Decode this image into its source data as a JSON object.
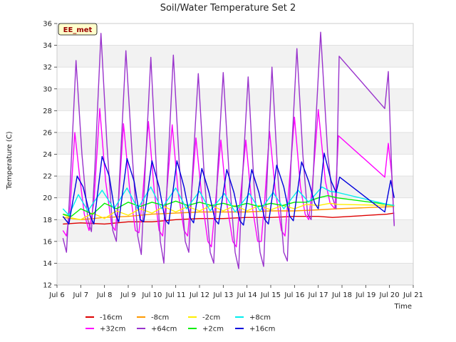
{
  "chart_data": {
    "type": "line",
    "title": "Soil/Water Temperature Set 2",
    "xlabel": "Time",
    "ylabel": "Temperature (C)",
    "annotation": "EE_met",
    "ylim": [
      12,
      36
    ],
    "xlim": [
      6,
      21
    ],
    "yticks": [
      12,
      14,
      16,
      18,
      20,
      22,
      24,
      26,
      28,
      30,
      32,
      34,
      36
    ],
    "xticks": [
      {
        "v": 6,
        "label": "Jul 6"
      },
      {
        "v": 7,
        "label": "Jul 7"
      },
      {
        "v": 8,
        "label": "Jul 8"
      },
      {
        "v": 9,
        "label": "Jul 9"
      },
      {
        "v": 10,
        "label": "Jul 10"
      },
      {
        "v": 11,
        "label": "Jul 11"
      },
      {
        "v": 12,
        "label": "Jul 12"
      },
      {
        "v": 13,
        "label": "Jul 13"
      },
      {
        "v": 14,
        "label": "Jul 14"
      },
      {
        "v": 15,
        "label": "Jul 15"
      },
      {
        "v": 16,
        "label": "Jul 16"
      },
      {
        "v": 17,
        "label": "Jul 17"
      },
      {
        "v": 18,
        "label": "Jul 18"
      },
      {
        "v": 19,
        "label": "Jul 19"
      },
      {
        "v": 20,
        "label": "Jul 20"
      },
      {
        "v": 21,
        "label": "Jul 21"
      }
    ],
    "grid": "horizontal bands",
    "legend_position": "bottom",
    "series": [
      {
        "name": "-16cm",
        "color": "#dd0000",
        "points": [
          [
            6.25,
            17.6
          ],
          [
            7,
            17.7
          ],
          [
            8,
            17.6
          ],
          [
            9,
            17.8
          ],
          [
            10,
            17.8
          ],
          [
            11,
            18.0
          ],
          [
            12,
            18.1
          ],
          [
            13,
            18.1
          ],
          [
            14,
            18.2
          ],
          [
            15,
            18.2
          ],
          [
            16,
            18.3
          ],
          [
            17,
            18.3
          ],
          [
            17.6,
            18.2
          ],
          [
            19.9,
            18.5
          ],
          [
            20.2,
            18.6
          ]
        ]
      },
      {
        "name": "+32cm",
        "color": "#ff00ff",
        "points": [
          [
            6.25,
            17.0
          ],
          [
            6.4,
            16.5
          ],
          [
            6.55,
            19.0
          ],
          [
            6.75,
            26.0
          ],
          [
            6.95,
            22.0
          ],
          [
            7.15,
            18.5
          ],
          [
            7.35,
            17.0
          ],
          [
            7.55,
            19.5
          ],
          [
            7.8,
            28.2
          ],
          [
            8.05,
            21.5
          ],
          [
            8.3,
            17.5
          ],
          [
            8.45,
            17.0
          ],
          [
            8.6,
            20.0
          ],
          [
            8.8,
            26.8
          ],
          [
            9.05,
            21.0
          ],
          [
            9.3,
            17.0
          ],
          [
            9.45,
            16.8
          ],
          [
            9.6,
            20.0
          ],
          [
            9.85,
            27.0
          ],
          [
            10.1,
            20.5
          ],
          [
            10.3,
            17.0
          ],
          [
            10.45,
            16.5
          ],
          [
            10.6,
            20.0
          ],
          [
            10.85,
            26.7
          ],
          [
            11.1,
            20.5
          ],
          [
            11.35,
            17.0
          ],
          [
            11.5,
            16.5
          ],
          [
            11.65,
            20.0
          ],
          [
            11.85,
            25.5
          ],
          [
            12.1,
            20.0
          ],
          [
            12.35,
            16.0
          ],
          [
            12.5,
            15.5
          ],
          [
            12.65,
            19.0
          ],
          [
            12.9,
            25.3
          ],
          [
            13.15,
            19.5
          ],
          [
            13.4,
            16.0
          ],
          [
            13.55,
            15.5
          ],
          [
            13.7,
            19.5
          ],
          [
            13.95,
            25.3
          ],
          [
            14.2,
            19.5
          ],
          [
            14.45,
            16.0
          ],
          [
            14.6,
            16.0
          ],
          [
            14.75,
            20.0
          ],
          [
            14.95,
            26.1
          ],
          [
            15.2,
            20.5
          ],
          [
            15.45,
            17.0
          ],
          [
            15.6,
            16.5
          ],
          [
            15.75,
            20.5
          ],
          [
            16.0,
            27.4
          ],
          [
            16.25,
            21.0
          ],
          [
            16.45,
            18.5
          ],
          [
            16.6,
            18.0
          ],
          [
            16.75,
            21.0
          ],
          [
            17.0,
            28.1
          ],
          [
            17.3,
            21.5
          ],
          [
            17.5,
            19.5
          ],
          [
            17.7,
            19.0
          ],
          [
            17.85,
            25.7
          ],
          [
            19.8,
            21.9
          ],
          [
            19.95,
            25.0
          ],
          [
            20.1,
            22.0
          ],
          [
            20.2,
            17.5
          ]
        ]
      },
      {
        "name": "-8cm",
        "color": "#ff9900",
        "points": [
          [
            6.25,
            18.2
          ],
          [
            7,
            18.0
          ],
          [
            8,
            18.2
          ],
          [
            9,
            18.3
          ],
          [
            10,
            18.5
          ],
          [
            11,
            18.6
          ],
          [
            12,
            18.7
          ],
          [
            13,
            18.7
          ],
          [
            14,
            18.7
          ],
          [
            15,
            18.8
          ],
          [
            16,
            18.8
          ],
          [
            17,
            18.9
          ],
          [
            17.8,
            19.0
          ],
          [
            20.2,
            19.2
          ]
        ]
      },
      {
        "name": "+64cm",
        "color": "#9933cc",
        "points": [
          [
            6.25,
            16.3
          ],
          [
            6.4,
            15.0
          ],
          [
            6.55,
            21.0
          ],
          [
            6.8,
            32.6
          ],
          [
            7.05,
            24.0
          ],
          [
            7.3,
            18.0
          ],
          [
            7.45,
            16.9
          ],
          [
            7.6,
            23.0
          ],
          [
            7.85,
            35.1
          ],
          [
            8.1,
            25.0
          ],
          [
            8.35,
            17.0
          ],
          [
            8.5,
            16.0
          ],
          [
            8.65,
            22.5
          ],
          [
            8.9,
            33.5
          ],
          [
            9.15,
            24.5
          ],
          [
            9.4,
            16.5
          ],
          [
            9.55,
            14.8
          ],
          [
            9.7,
            22.0
          ],
          [
            9.95,
            32.9
          ],
          [
            10.2,
            22.0
          ],
          [
            10.35,
            16.0
          ],
          [
            10.5,
            14.0
          ],
          [
            10.65,
            22.0
          ],
          [
            10.9,
            33.1
          ],
          [
            11.15,
            23.0
          ],
          [
            11.4,
            16.0
          ],
          [
            11.55,
            15.0
          ],
          [
            11.7,
            22.0
          ],
          [
            11.95,
            31.4
          ],
          [
            12.2,
            22.0
          ],
          [
            12.45,
            15.0
          ],
          [
            12.6,
            14.0
          ],
          [
            12.75,
            22.0
          ],
          [
            13.0,
            31.5
          ],
          [
            13.25,
            22.0
          ],
          [
            13.5,
            15.0
          ],
          [
            13.65,
            13.5
          ],
          [
            13.8,
            21.5
          ],
          [
            14.05,
            31.1
          ],
          [
            14.3,
            21.0
          ],
          [
            14.55,
            15.0
          ],
          [
            14.7,
            13.7
          ],
          [
            14.85,
            22.0
          ],
          [
            15.05,
            32.0
          ],
          [
            15.3,
            22.0
          ],
          [
            15.55,
            15.0
          ],
          [
            15.7,
            14.2
          ],
          [
            15.85,
            23.0
          ],
          [
            16.1,
            33.7
          ],
          [
            16.35,
            24.0
          ],
          [
            16.55,
            18.5
          ],
          [
            16.7,
            18.0
          ],
          [
            16.85,
            25.0
          ],
          [
            17.1,
            35.2
          ],
          [
            17.4,
            24.0
          ],
          [
            17.6,
            20.0
          ],
          [
            17.75,
            19.0
          ],
          [
            17.88,
            33.0
          ],
          [
            19.8,
            28.2
          ],
          [
            19.95,
            31.6
          ],
          [
            20.1,
            22.0
          ],
          [
            20.2,
            17.4
          ]
        ]
      },
      {
        "name": "-2cm",
        "color": "#ffee00",
        "points": [
          [
            6.25,
            18.5
          ],
          [
            6.5,
            18.2
          ],
          [
            7,
            18.0
          ],
          [
            7.5,
            18.6
          ],
          [
            8,
            18.1
          ],
          [
            8.5,
            18.8
          ],
          [
            9,
            18.4
          ],
          [
            9.5,
            19.0
          ],
          [
            10,
            18.6
          ],
          [
            10.5,
            19.2
          ],
          [
            11,
            18.7
          ],
          [
            11.5,
            19.2
          ],
          [
            12,
            18.8
          ],
          [
            12.5,
            19.3
          ],
          [
            13,
            18.8
          ],
          [
            13.5,
            19.3
          ],
          [
            14,
            18.8
          ],
          [
            14.5,
            19.3
          ],
          [
            15,
            18.9
          ],
          [
            15.5,
            19.3
          ],
          [
            16,
            19.0
          ],
          [
            16.5,
            19.4
          ],
          [
            17,
            19.3
          ],
          [
            17.5,
            19.5
          ],
          [
            17.8,
            19.4
          ],
          [
            20.2,
            19.3
          ]
        ]
      },
      {
        "name": "+2cm",
        "color": "#00ee00",
        "points": [
          [
            6.25,
            18.5
          ],
          [
            6.6,
            18.3
          ],
          [
            7,
            19.0
          ],
          [
            7.5,
            18.5
          ],
          [
            8,
            19.5
          ],
          [
            8.5,
            19.0
          ],
          [
            9,
            19.6
          ],
          [
            9.5,
            19.2
          ],
          [
            10,
            19.6
          ],
          [
            10.5,
            19.3
          ],
          [
            11,
            19.7
          ],
          [
            11.5,
            19.3
          ],
          [
            12,
            19.6
          ],
          [
            12.5,
            19.3
          ],
          [
            13,
            19.5
          ],
          [
            13.5,
            19.2
          ],
          [
            14,
            19.5
          ],
          [
            14.5,
            19.2
          ],
          [
            15,
            19.5
          ],
          [
            15.5,
            19.3
          ],
          [
            16,
            19.6
          ],
          [
            16.5,
            19.6
          ],
          [
            17,
            20.0
          ],
          [
            17.4,
            20.2
          ],
          [
            17.8,
            20.0
          ],
          [
            19.9,
            19.4
          ],
          [
            20.2,
            19.3
          ]
        ]
      },
      {
        "name": "+8cm",
        "color": "#00eeee",
        "points": [
          [
            6.25,
            19.0
          ],
          [
            6.5,
            18.4
          ],
          [
            6.9,
            20.3
          ],
          [
            7.3,
            18.8
          ],
          [
            7.9,
            20.7
          ],
          [
            8.4,
            19.0
          ],
          [
            8.95,
            20.9
          ],
          [
            9.4,
            19.0
          ],
          [
            9.95,
            21.0
          ],
          [
            10.4,
            19.0
          ],
          [
            11.0,
            20.9
          ],
          [
            11.45,
            19.0
          ],
          [
            12.0,
            20.6
          ],
          [
            12.45,
            18.8
          ],
          [
            13.05,
            20.4
          ],
          [
            13.5,
            18.7
          ],
          [
            14.1,
            20.4
          ],
          [
            14.55,
            18.8
          ],
          [
            15.1,
            20.5
          ],
          [
            15.55,
            19.0
          ],
          [
            16.15,
            20.7
          ],
          [
            16.6,
            19.6
          ],
          [
            17.15,
            21.0
          ],
          [
            17.5,
            20.6
          ],
          [
            17.8,
            20.5
          ],
          [
            19.9,
            19.4
          ],
          [
            20.2,
            19.3
          ]
        ]
      },
      {
        "name": "+16cm",
        "color": "#0000dd",
        "points": [
          [
            6.25,
            18.3
          ],
          [
            6.5,
            17.6
          ],
          [
            6.85,
            22.0
          ],
          [
            7.1,
            21.0
          ],
          [
            7.4,
            18.3
          ],
          [
            7.55,
            17.6
          ],
          [
            7.9,
            23.8
          ],
          [
            8.2,
            22.0
          ],
          [
            8.45,
            18.5
          ],
          [
            8.6,
            17.8
          ],
          [
            8.95,
            23.6
          ],
          [
            9.25,
            21.5
          ],
          [
            9.5,
            18.0
          ],
          [
            9.65,
            17.8
          ],
          [
            10.0,
            23.4
          ],
          [
            10.3,
            21.0
          ],
          [
            10.55,
            18.0
          ],
          [
            10.7,
            17.6
          ],
          [
            11.05,
            23.4
          ],
          [
            11.35,
            21.0
          ],
          [
            11.6,
            18.2
          ],
          [
            11.75,
            17.7
          ],
          [
            12.1,
            22.7
          ],
          [
            12.4,
            20.5
          ],
          [
            12.65,
            18.0
          ],
          [
            12.8,
            17.6
          ],
          [
            13.15,
            22.6
          ],
          [
            13.45,
            20.5
          ],
          [
            13.7,
            17.9
          ],
          [
            13.85,
            17.5
          ],
          [
            14.2,
            22.6
          ],
          [
            14.5,
            20.5
          ],
          [
            14.75,
            18.0
          ],
          [
            14.9,
            17.6
          ],
          [
            15.25,
            23.0
          ],
          [
            15.55,
            21.0
          ],
          [
            15.8,
            18.3
          ],
          [
            15.95,
            17.9
          ],
          [
            16.3,
            23.3
          ],
          [
            16.6,
            21.5
          ],
          [
            16.85,
            19.5
          ],
          [
            17.0,
            19.0
          ],
          [
            17.25,
            24.1
          ],
          [
            17.55,
            21.5
          ],
          [
            17.75,
            20.5
          ],
          [
            17.9,
            21.9
          ],
          [
            19.8,
            18.7
          ],
          [
            20.05,
            21.6
          ],
          [
            20.2,
            20.0
          ]
        ]
      }
    ]
  }
}
